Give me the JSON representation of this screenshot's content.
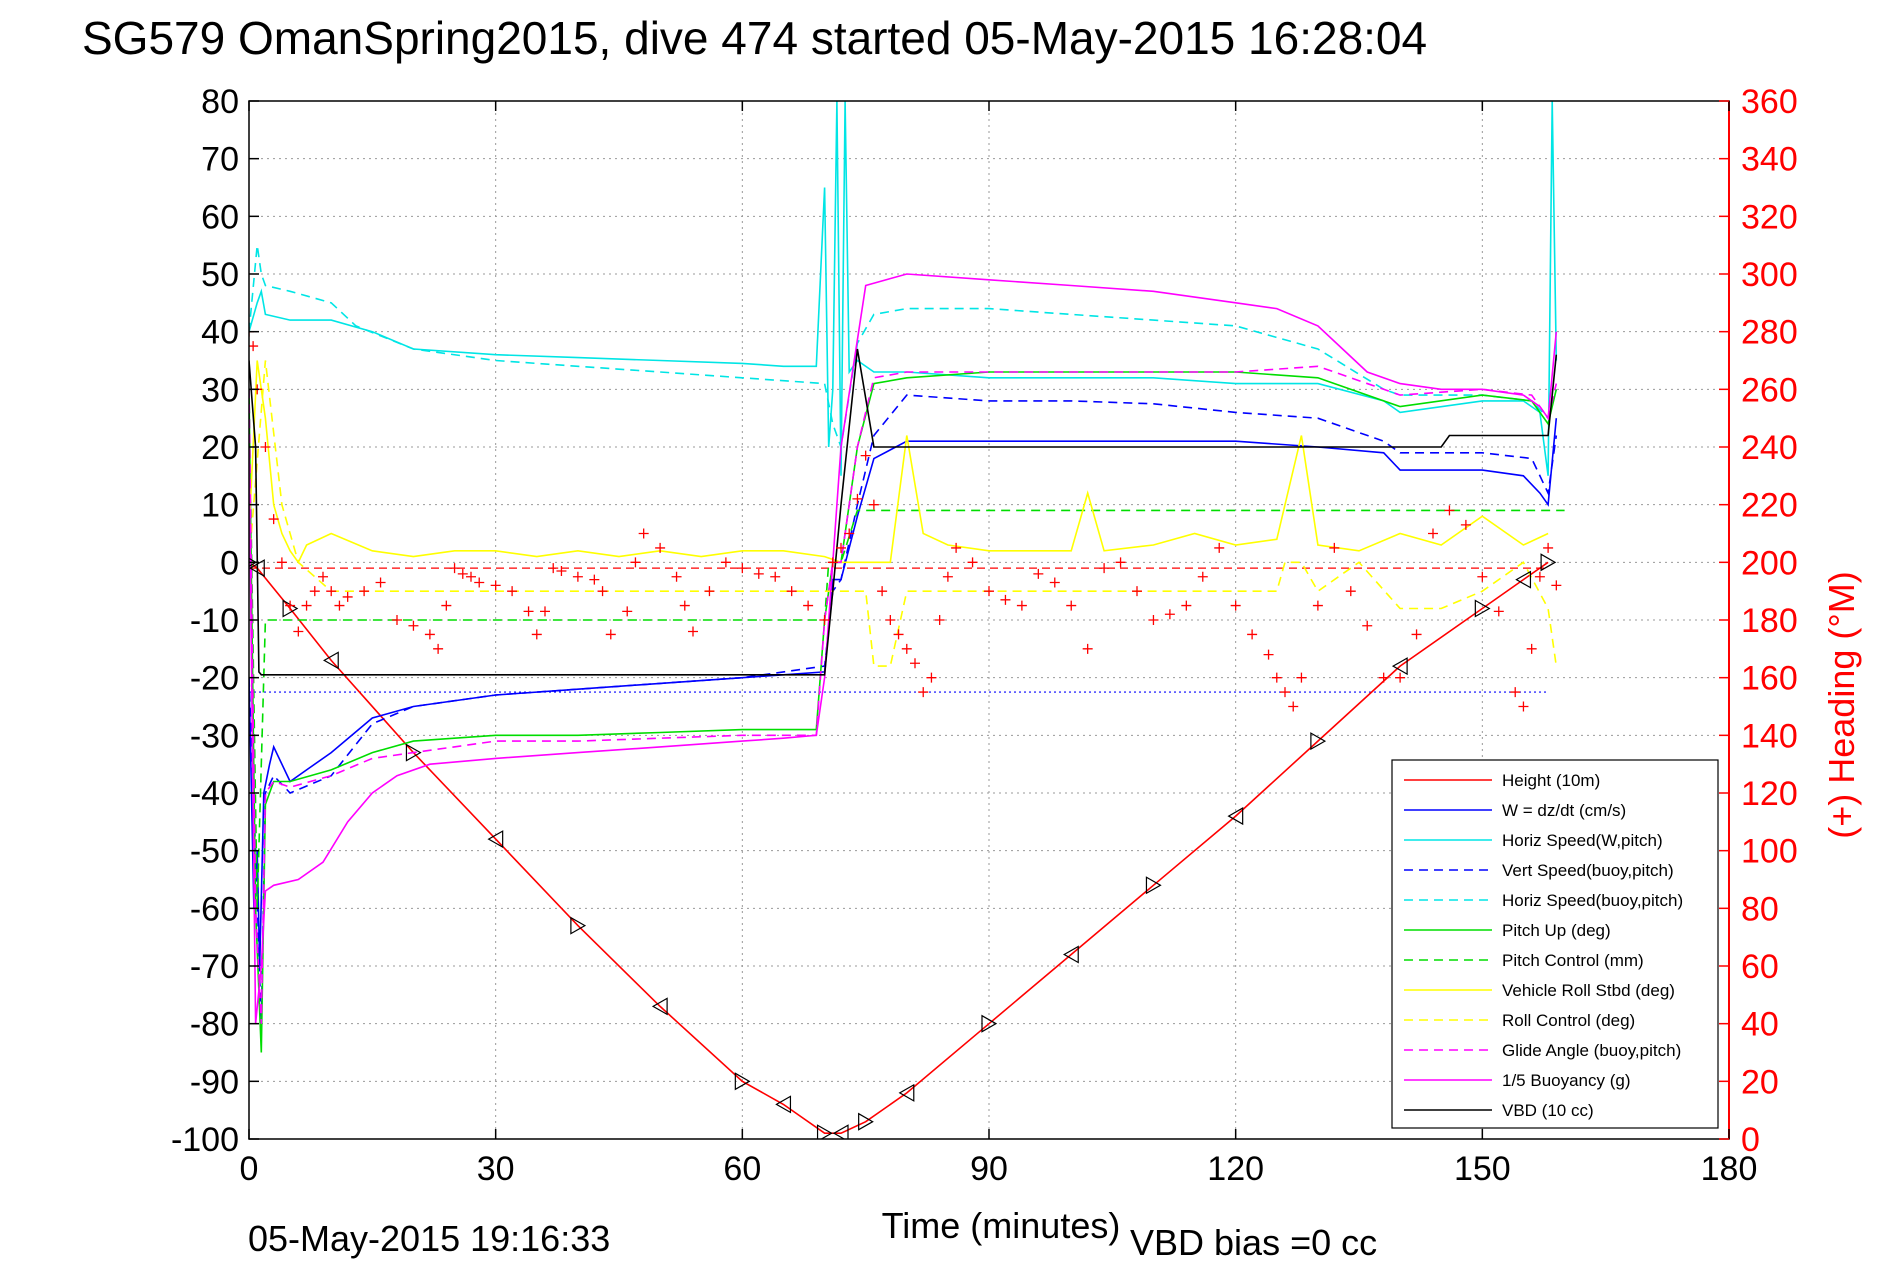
{
  "chart_data": {
    "type": "line",
    "title": "SG579 OmanSpring2015, dive 474 started 05-May-2015 16:28:04",
    "xlabel": "Time (minutes)",
    "ylabel": "",
    "ylabel_right": "(+) Heading (°M)",
    "xlim": [
      0,
      180
    ],
    "ylim": [
      -100,
      80
    ],
    "ylim_right": [
      0,
      360
    ],
    "x_ticks": [
      0,
      30,
      60,
      90,
      120,
      150,
      180
    ],
    "y_ticks": [
      80,
      70,
      60,
      50,
      40,
      30,
      20,
      10,
      0,
      -10,
      -20,
      -30,
      -40,
      -50,
      -60,
      -70,
      -80,
      -90,
      -100
    ],
    "y_right_ticks": [
      360,
      340,
      320,
      300,
      280,
      260,
      240,
      220,
      200,
      180,
      160,
      140,
      120,
      100,
      80,
      60,
      40,
      20,
      0
    ],
    "grid": true,
    "legend_position": "bottom-right",
    "footer_left": "05-May-2015 19:16:33",
    "footer_right": "VBD bias =0 cc",
    "colors": {
      "axis": "#000000",
      "right_axis": "#ff0000",
      "grid": "#9a9a9a"
    },
    "series": [
      {
        "name": "Height (10m)",
        "color": "#ff0000",
        "dash": "solid",
        "x": [
          0,
          1,
          5,
          10,
          20,
          30,
          40,
          50,
          60,
          65,
          70,
          72,
          75,
          80,
          90,
          100,
          110,
          120,
          130,
          140,
          150,
          155,
          158
        ],
        "y": [
          0,
          -1,
          -8,
          -17,
          -33,
          -48,
          -63,
          -77,
          -90,
          -94,
          -99,
          -99,
          -97,
          -92,
          -80,
          -68,
          -56,
          -44,
          -31,
          -18,
          -8,
          -3,
          0
        ]
      },
      {
        "name": "W = dz/dt (cm/s)",
        "color": "#0000ff",
        "dash": "solid",
        "x": [
          0,
          0.6,
          1,
          1.3,
          1.8,
          2.5,
          3,
          4,
          5,
          7,
          10,
          15,
          20,
          30,
          40,
          50,
          60,
          65,
          70,
          71,
          72,
          74,
          76,
          80,
          90,
          100,
          110,
          120,
          130,
          138,
          140,
          150,
          155,
          157,
          158,
          159
        ],
        "y": [
          -20,
          -60,
          -50,
          -70,
          -40,
          -35,
          -32,
          -35,
          -38,
          -36,
          -33,
          -27,
          -25,
          -23,
          -22,
          -21,
          -20,
          -19.5,
          -19,
          -3,
          -3,
          8,
          18,
          21,
          21,
          21,
          21,
          21,
          20,
          19,
          16,
          16,
          15,
          12,
          10,
          25
        ]
      },
      {
        "name": "Horiz Speed(W,pitch)",
        "color": "#00e5e5",
        "dash": "solid",
        "x": [
          0,
          1,
          1.5,
          2,
          5,
          10,
          15,
          20,
          30,
          40,
          50,
          60,
          65,
          69,
          70,
          70.5,
          71,
          71.5,
          72,
          72.5,
          73,
          74,
          76,
          80,
          90,
          100,
          110,
          120,
          130,
          138,
          140,
          150,
          155,
          157,
          158,
          158.5,
          159
        ],
        "y": [
          40,
          45,
          47,
          43,
          42,
          42,
          40,
          37,
          36,
          35.5,
          35,
          34.5,
          34,
          34,
          65,
          20,
          30,
          80,
          15,
          80,
          33,
          35,
          33,
          33,
          32,
          32,
          32,
          31,
          31,
          28,
          26,
          28,
          28,
          26,
          15,
          80,
          35
        ]
      },
      {
        "name": "Vert Speed(buoy,pitch)",
        "color": "#0000ff",
        "dash": "dashed",
        "x": [
          0,
          0.8,
          1.5,
          2,
          3,
          5,
          10,
          15,
          20,
          30,
          40,
          50,
          60,
          65,
          70,
          71,
          72,
          74,
          76,
          80,
          90,
          100,
          110,
          120,
          130,
          138,
          140,
          150,
          156,
          158,
          159
        ],
        "y": [
          -20,
          -50,
          -80,
          -40,
          -37,
          -40,
          -37,
          -28,
          -25,
          -23,
          -22,
          -21,
          -20,
          -19,
          -18,
          -5,
          -3,
          10,
          22,
          29,
          28,
          28,
          27.5,
          26,
          25,
          21,
          19,
          19,
          18,
          12,
          22
        ]
      },
      {
        "name": "Horiz Speed(buoy,pitch)",
        "color": "#00e5e5",
        "dash": "dashed",
        "x": [
          0,
          1,
          1.5,
          2,
          5,
          10,
          13,
          20,
          30,
          40,
          50,
          60,
          65,
          70,
          71,
          72,
          74,
          76,
          80,
          90,
          100,
          110,
          120,
          130,
          138,
          140,
          150,
          156,
          158,
          159
        ],
        "y": [
          40,
          55,
          50,
          48,
          47,
          45,
          41,
          37,
          35,
          34,
          33,
          32,
          31.5,
          31,
          24,
          20,
          38,
          43,
          44,
          44,
          43,
          42,
          41,
          37,
          30,
          29,
          29,
          28,
          25,
          30
        ]
      },
      {
        "name": "Pitch Up (deg)",
        "color": "#00dd00",
        "dash": "solid",
        "x": [
          0,
          0.8,
          1.5,
          2,
          3,
          5,
          10,
          15,
          20,
          30,
          40,
          50,
          60,
          65,
          69,
          70,
          71,
          72,
          74,
          76,
          80,
          90,
          100,
          110,
          120,
          130,
          138,
          140,
          150,
          156,
          158,
          159
        ],
        "y": [
          30,
          -60,
          -85,
          -42,
          -38,
          -38,
          -36,
          -33,
          -31,
          -30,
          -30,
          -29.5,
          -29,
          -29,
          -29,
          -10,
          0,
          0,
          20,
          31,
          32,
          33,
          33,
          33,
          33,
          32,
          28,
          27,
          29,
          28,
          24,
          30
        ]
      },
      {
        "name": "Pitch Control (mm)",
        "color": "#00dd00",
        "dash": "dashed",
        "x": [
          0,
          1,
          2,
          6,
          70,
          70.5,
          72,
          74,
          76,
          160
        ],
        "y": [
          30,
          -60,
          -10,
          -10,
          -10,
          0,
          0,
          9,
          9,
          9
        ]
      },
      {
        "name": "Vehicle Roll Stbd (deg)",
        "color": "#ffff00",
        "dash": "solid",
        "x": [
          0,
          1,
          2,
          3,
          4,
          5,
          6,
          7,
          10,
          15,
          20,
          25,
          30,
          35,
          40,
          45,
          50,
          55,
          60,
          65,
          70,
          72,
          75,
          78,
          80,
          82,
          85,
          90,
          100,
          102,
          104,
          110,
          115,
          120,
          125,
          128,
          130,
          135,
          140,
          145,
          150,
          155,
          158
        ],
        "y": [
          5,
          35,
          25,
          10,
          5,
          2,
          0,
          3,
          5,
          2,
          1,
          2,
          2,
          1,
          2,
          1,
          2,
          1,
          2,
          2,
          1,
          0,
          0,
          0,
          22,
          5,
          3,
          2,
          2,
          12,
          2,
          3,
          5,
          3,
          4,
          22,
          3,
          2,
          5,
          3,
          8,
          3,
          5
        ]
      },
      {
        "name": "Roll Control (deg)",
        "color": "#ffff00",
        "dash": "dashed",
        "x": [
          0,
          2,
          4,
          6,
          10,
          15,
          20,
          30,
          40,
          50,
          60,
          65,
          70,
          75,
          76,
          78,
          80,
          90,
          100,
          102,
          105,
          110,
          115,
          120,
          125,
          126,
          128,
          130,
          135,
          140,
          145,
          150,
          155,
          158,
          159
        ],
        "y": [
          0,
          35,
          10,
          0,
          -5,
          -5,
          -5,
          -5,
          -5,
          -5,
          -5,
          -5,
          -5,
          -5,
          -18,
          -18,
          -5,
          -5,
          -5,
          -5,
          -5,
          -5,
          -5,
          -5,
          -5,
          0,
          0,
          -5,
          0,
          -8,
          -8,
          -5,
          0,
          -8,
          -18
        ]
      },
      {
        "name": "Glide Angle (buoy,pitch)",
        "color": "#ff00ff",
        "dash": "dashed",
        "x": [
          0,
          0.8,
          1.5,
          2,
          3,
          5,
          10,
          15,
          20,
          30,
          40,
          50,
          60,
          65,
          69,
          70,
          71,
          72,
          74,
          76,
          80,
          90,
          100,
          110,
          120,
          130,
          138,
          140,
          150,
          156,
          158,
          159
        ],
        "y": [
          30,
          -60,
          -80,
          -40,
          -38,
          -39,
          -37,
          -34,
          -33,
          -31,
          -31,
          -30.5,
          -30,
          -30,
          -30,
          -10,
          0,
          0,
          20,
          32,
          33,
          33,
          33,
          33,
          33,
          34,
          30,
          29,
          30,
          29,
          25,
          31
        ]
      },
      {
        "name": "1/5 Buoyancy (g)",
        "color": "#ff00ff",
        "dash": "solid",
        "x": [
          0,
          0.8,
          1.5,
          2,
          3,
          6,
          9,
          12,
          15,
          18,
          22,
          26,
          30,
          40,
          50,
          60,
          65,
          69,
          70,
          72,
          75,
          80,
          90,
          100,
          110,
          120,
          125,
          130,
          133,
          136,
          140,
          145,
          150,
          155,
          157,
          158,
          159
        ],
        "y": [
          20,
          -80,
          -70,
          -57,
          -56,
          -55,
          -52,
          -45,
          -40,
          -37,
          -35,
          -34.5,
          -34,
          -33,
          -32,
          -31,
          -30.5,
          -30,
          -20,
          20,
          48,
          50,
          49,
          48,
          47,
          45,
          44,
          41,
          37,
          33,
          31,
          30,
          30,
          29,
          27,
          25,
          40
        ]
      },
      {
        "name": "VBD (10 cc)",
        "color": "#000000",
        "dash": "solid",
        "x": [
          0,
          0.8,
          1.2,
          1.5,
          5,
          10,
          20,
          30,
          40,
          50,
          60,
          65,
          70,
          71,
          72,
          74,
          76,
          80,
          90,
          100,
          110,
          120,
          130,
          140,
          145,
          146,
          150,
          157,
          158,
          159
        ],
        "y": [
          35,
          20,
          -19,
          -19.5,
          -19.5,
          -19.5,
          -19.5,
          -19.5,
          -19.5,
          -19.5,
          -19.5,
          -19.5,
          -19.5,
          -5,
          10,
          37,
          20,
          20,
          20,
          20,
          20,
          20,
          20,
          20,
          20,
          22,
          22,
          22,
          22,
          36
        ]
      }
    ],
    "heading": {
      "name": "(+) Heading (°M)",
      "color": "#ff0000",
      "x": [
        0,
        0.5,
        1,
        2,
        3,
        4,
        5,
        6,
        7,
        8,
        9,
        10,
        11,
        12,
        14,
        16,
        18,
        20,
        22,
        23,
        24,
        25,
        26,
        27,
        28,
        30,
        32,
        34,
        35,
        36,
        37,
        38,
        40,
        42,
        43,
        44,
        46,
        47,
        48,
        50,
        52,
        53,
        54,
        56,
        58,
        60,
        62,
        64,
        66,
        68,
        70,
        71,
        72,
        73,
        74,
        75,
        76,
        77,
        78,
        79,
        80,
        81,
        82,
        83,
        84,
        85,
        86,
        88,
        90,
        92,
        94,
        96,
        98,
        100,
        102,
        104,
        106,
        108,
        110,
        112,
        114,
        116,
        118,
        120,
        122,
        124,
        125,
        126,
        127,
        128,
        130,
        132,
        134,
        136,
        138,
        140,
        142,
        144,
        146,
        148,
        150,
        152,
        154,
        155,
        156,
        157,
        158,
        159
      ],
      "y": [
        280,
        275,
        260,
        240,
        215,
        200,
        185,
        176,
        185,
        190,
        195,
        190,
        185,
        188,
        190,
        193,
        180,
        178,
        175,
        170,
        185,
        198,
        196,
        195,
        193,
        192,
        190,
        183,
        175,
        183,
        198,
        197,
        195,
        194,
        190,
        175,
        183,
        200,
        210,
        205,
        195,
        185,
        176,
        190,
        200,
        198,
        196,
        195,
        190,
        185,
        180,
        200,
        205,
        210,
        222,
        237,
        220,
        190,
        180,
        175,
        170,
        165,
        155,
        160,
        180,
        195,
        205,
        200,
        190,
        187,
        185,
        196,
        193,
        185,
        170,
        198,
        200,
        190,
        180,
        182,
        185,
        195,
        205,
        185,
        175,
        168,
        160,
        155,
        150,
        160,
        185,
        205,
        190,
        178,
        160,
        160,
        175,
        210,
        218,
        213,
        195,
        183,
        155,
        150,
        170,
        195,
        205,
        192
      ]
    },
    "heading_setpoint": {
      "color": "#ff0000",
      "y_right": 198
    },
    "setpoint_blue": {
      "color": "#0000ff",
      "y": -22.5
    }
  }
}
